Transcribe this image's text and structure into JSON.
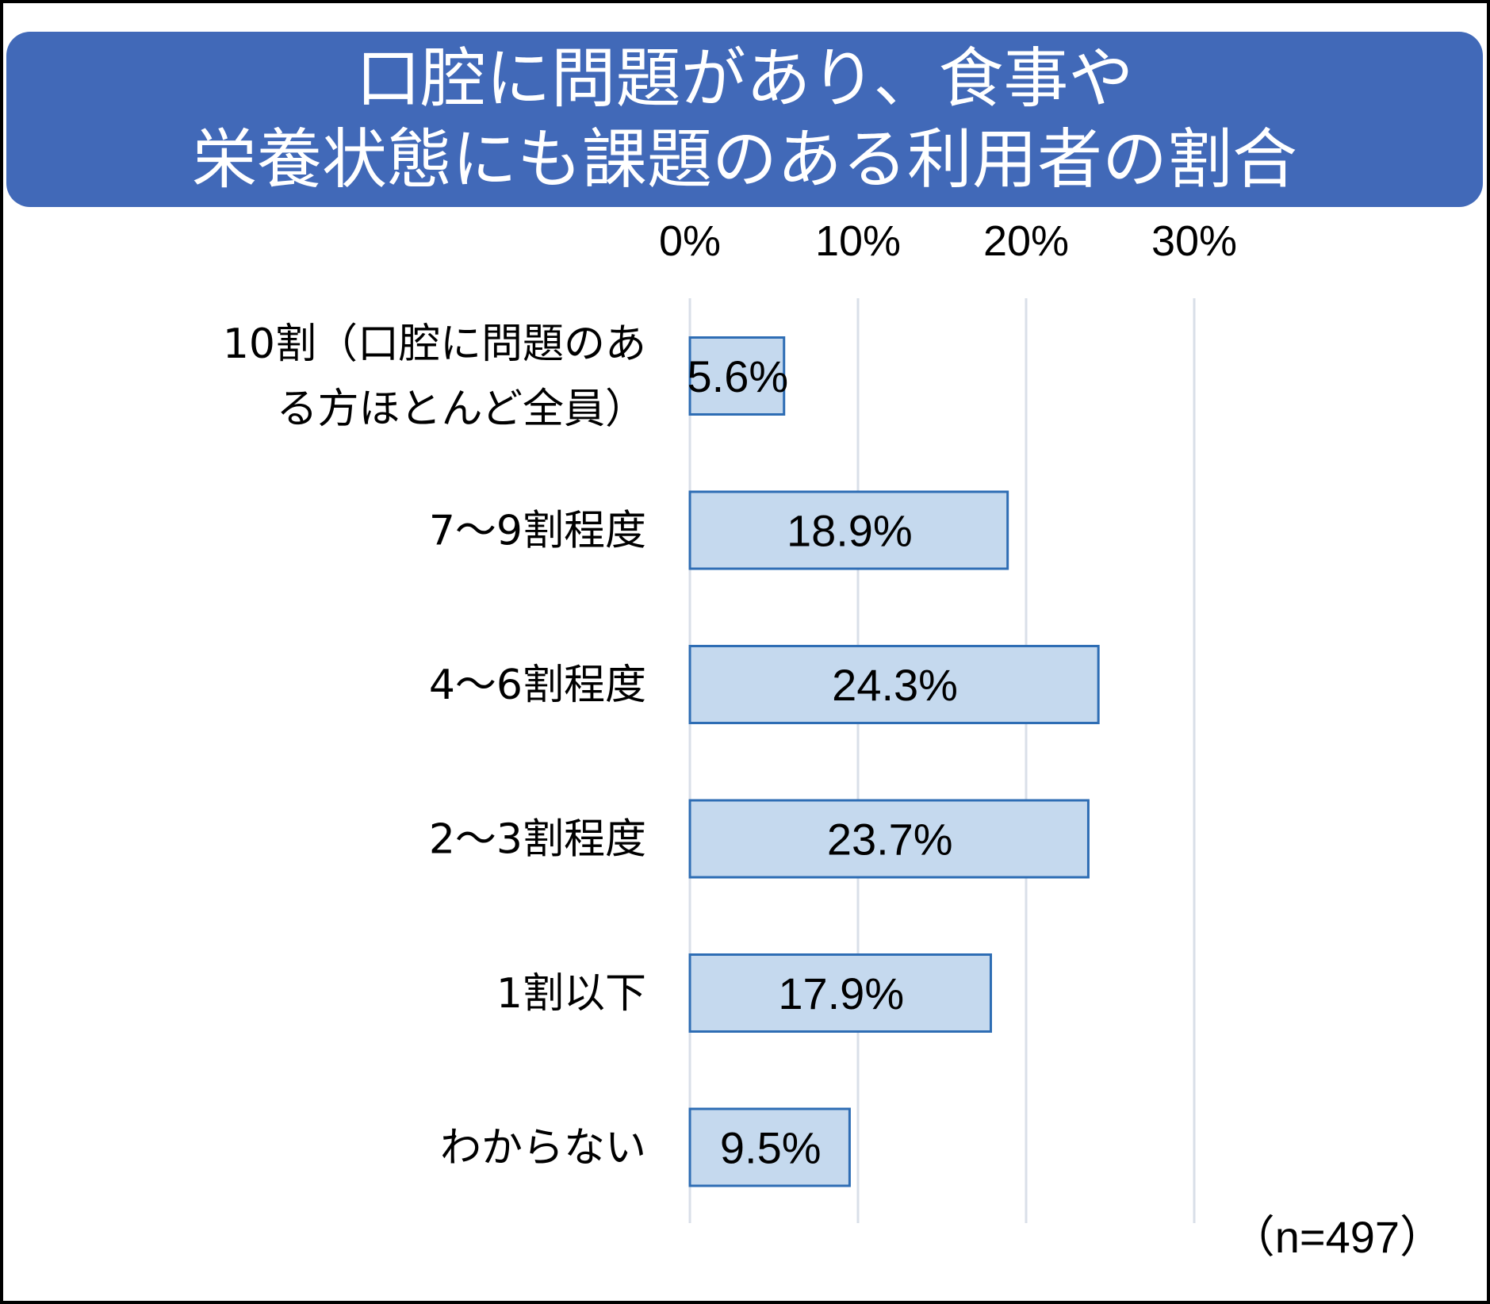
{
  "title_lines": [
    "口腔に問題があり、食事や",
    "栄養状態にも課題のある利用者の割合"
  ],
  "sample_size": "（n=497）",
  "chart_data": {
    "type": "bar",
    "orientation": "horizontal",
    "title": "口腔に問題があり、食事や栄養状態にも課題のある利用者の割合",
    "categories": [
      [
        "10割（口腔に問題のあ",
        "る方ほとんど全員）"
      ],
      [
        "7～9割程度"
      ],
      [
        "4～6割程度"
      ],
      [
        "2～3割程度"
      ],
      [
        "1割以下"
      ],
      [
        "わからない"
      ]
    ],
    "values": [
      5.6,
      18.9,
      24.3,
      23.7,
      17.9,
      9.5
    ],
    "value_labels": [
      "5.6%",
      "18.9%",
      "24.3%",
      "23.7%",
      "17.9%",
      "9.5%"
    ],
    "x_ticks": [
      "0%",
      "10%",
      "20%",
      "30%"
    ],
    "xlim": [
      0,
      30
    ],
    "x_axis_position": "top",
    "grid": true,
    "colors": {
      "bar_fill": "#c5d9ee",
      "bar_stroke": "#2e6db4",
      "grid": "#d9dfe8",
      "banner": "#4169b8"
    }
  }
}
